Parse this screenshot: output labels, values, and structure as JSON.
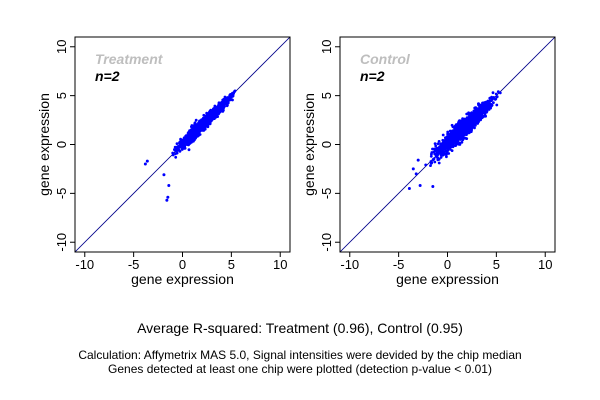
{
  "chart_data": [
    {
      "type": "scatter",
      "title": "Treatment",
      "subtitle": "n=2",
      "xlabel": "gene expression",
      "ylabel": "gene expression",
      "xlim": [
        -11,
        11
      ],
      "ylim": [
        -11,
        11
      ],
      "xticks": [
        -10,
        -5,
        0,
        5,
        10
      ],
      "yticks": [
        -10,
        -5,
        0,
        5,
        10
      ],
      "reference_line": "y = x",
      "grid": false,
      "point_color": "#0000ff",
      "line_color": "#00008b",
      "cloud": {
        "x_range": [
          -1.5,
          5.8
        ],
        "spread": 0.35
      },
      "outliers": [
        [
          -3.8,
          -2.0
        ],
        [
          -3.6,
          -1.7
        ],
        [
          -1.5,
          -5.4
        ],
        [
          -1.6,
          -5.7
        ],
        [
          -1.9,
          -3.1
        ],
        [
          -1.4,
          -4.2
        ]
      ]
    },
    {
      "type": "scatter",
      "title": "Control",
      "subtitle": "n=2",
      "xlabel": "gene expression",
      "ylabel": "gene expression",
      "xlim": [
        -11,
        11
      ],
      "ylim": [
        -11,
        11
      ],
      "xticks": [
        -10,
        -5,
        0,
        5,
        10
      ],
      "yticks": [
        -10,
        -5,
        0,
        5,
        10
      ],
      "reference_line": "y = x",
      "grid": false,
      "point_color": "#0000ff",
      "line_color": "#00008b",
      "cloud": {
        "x_range": [
          -2.5,
          5.8
        ],
        "spread": 0.55
      },
      "outliers": [
        [
          -3.5,
          -2.5
        ],
        [
          -3.9,
          -4.5
        ],
        [
          -2.8,
          -4.2
        ],
        [
          -3.2,
          -3.0
        ],
        [
          -1.5,
          -4.3
        ],
        [
          -3.0,
          -1.6
        ]
      ]
    }
  ],
  "summary": "Average R-squared: Treatment (0.96), Control (0.95)",
  "notes": [
    "Calculation: Affymetrix MAS 5.0, Signal intensities were devided by the chip median",
    "Genes detected at least one chip were plotted (detection p-value < 0.01)"
  ]
}
